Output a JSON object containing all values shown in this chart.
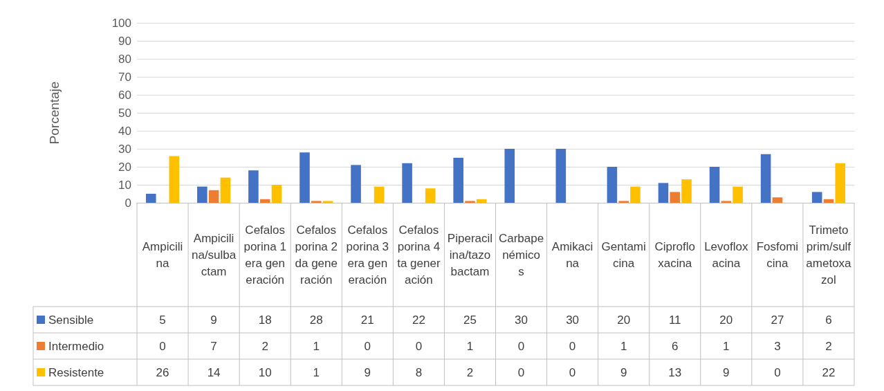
{
  "chart_data": {
    "type": "bar",
    "ylabel": "Porcentaje",
    "categories": [
      "Ampicilina",
      "Ampicilina/sulbactam",
      "Cefalosporina 1era generación",
      "Cefalosporina 2da generación",
      "Cefalosporina 3era generación",
      "Cefalosporina 4ta generación",
      "Piperacilina/tazobactam",
      "Carbapenémicos",
      "Amikacina",
      "Gentamicina",
      "Ciprofloxacina",
      "Levofloxacina",
      "Fosfomicina",
      "Trimetoprim/sulfametoxazol"
    ],
    "series": [
      {
        "name": "Sensible",
        "color": "#4472c4",
        "values": [
          5,
          9,
          18,
          28,
          21,
          22,
          25,
          30,
          30,
          20,
          11,
          20,
          27,
          6
        ]
      },
      {
        "name": "Intermedio",
        "color": "#ed7d31",
        "values": [
          0,
          7,
          2,
          1,
          0,
          0,
          1,
          0,
          0,
          1,
          6,
          1,
          3,
          2
        ]
      },
      {
        "name": "Resistente",
        "color": "#ffc000",
        "values": [
          26,
          14,
          10,
          1,
          9,
          8,
          2,
          0,
          0,
          9,
          13,
          9,
          0,
          22
        ]
      }
    ],
    "ylim": [
      0,
      100
    ],
    "yticks": [
      0,
      10,
      20,
      30,
      40,
      50,
      60,
      70,
      80,
      90,
      100
    ],
    "grid": "y",
    "legend": "bottom left",
    "data_labels": true
  }
}
